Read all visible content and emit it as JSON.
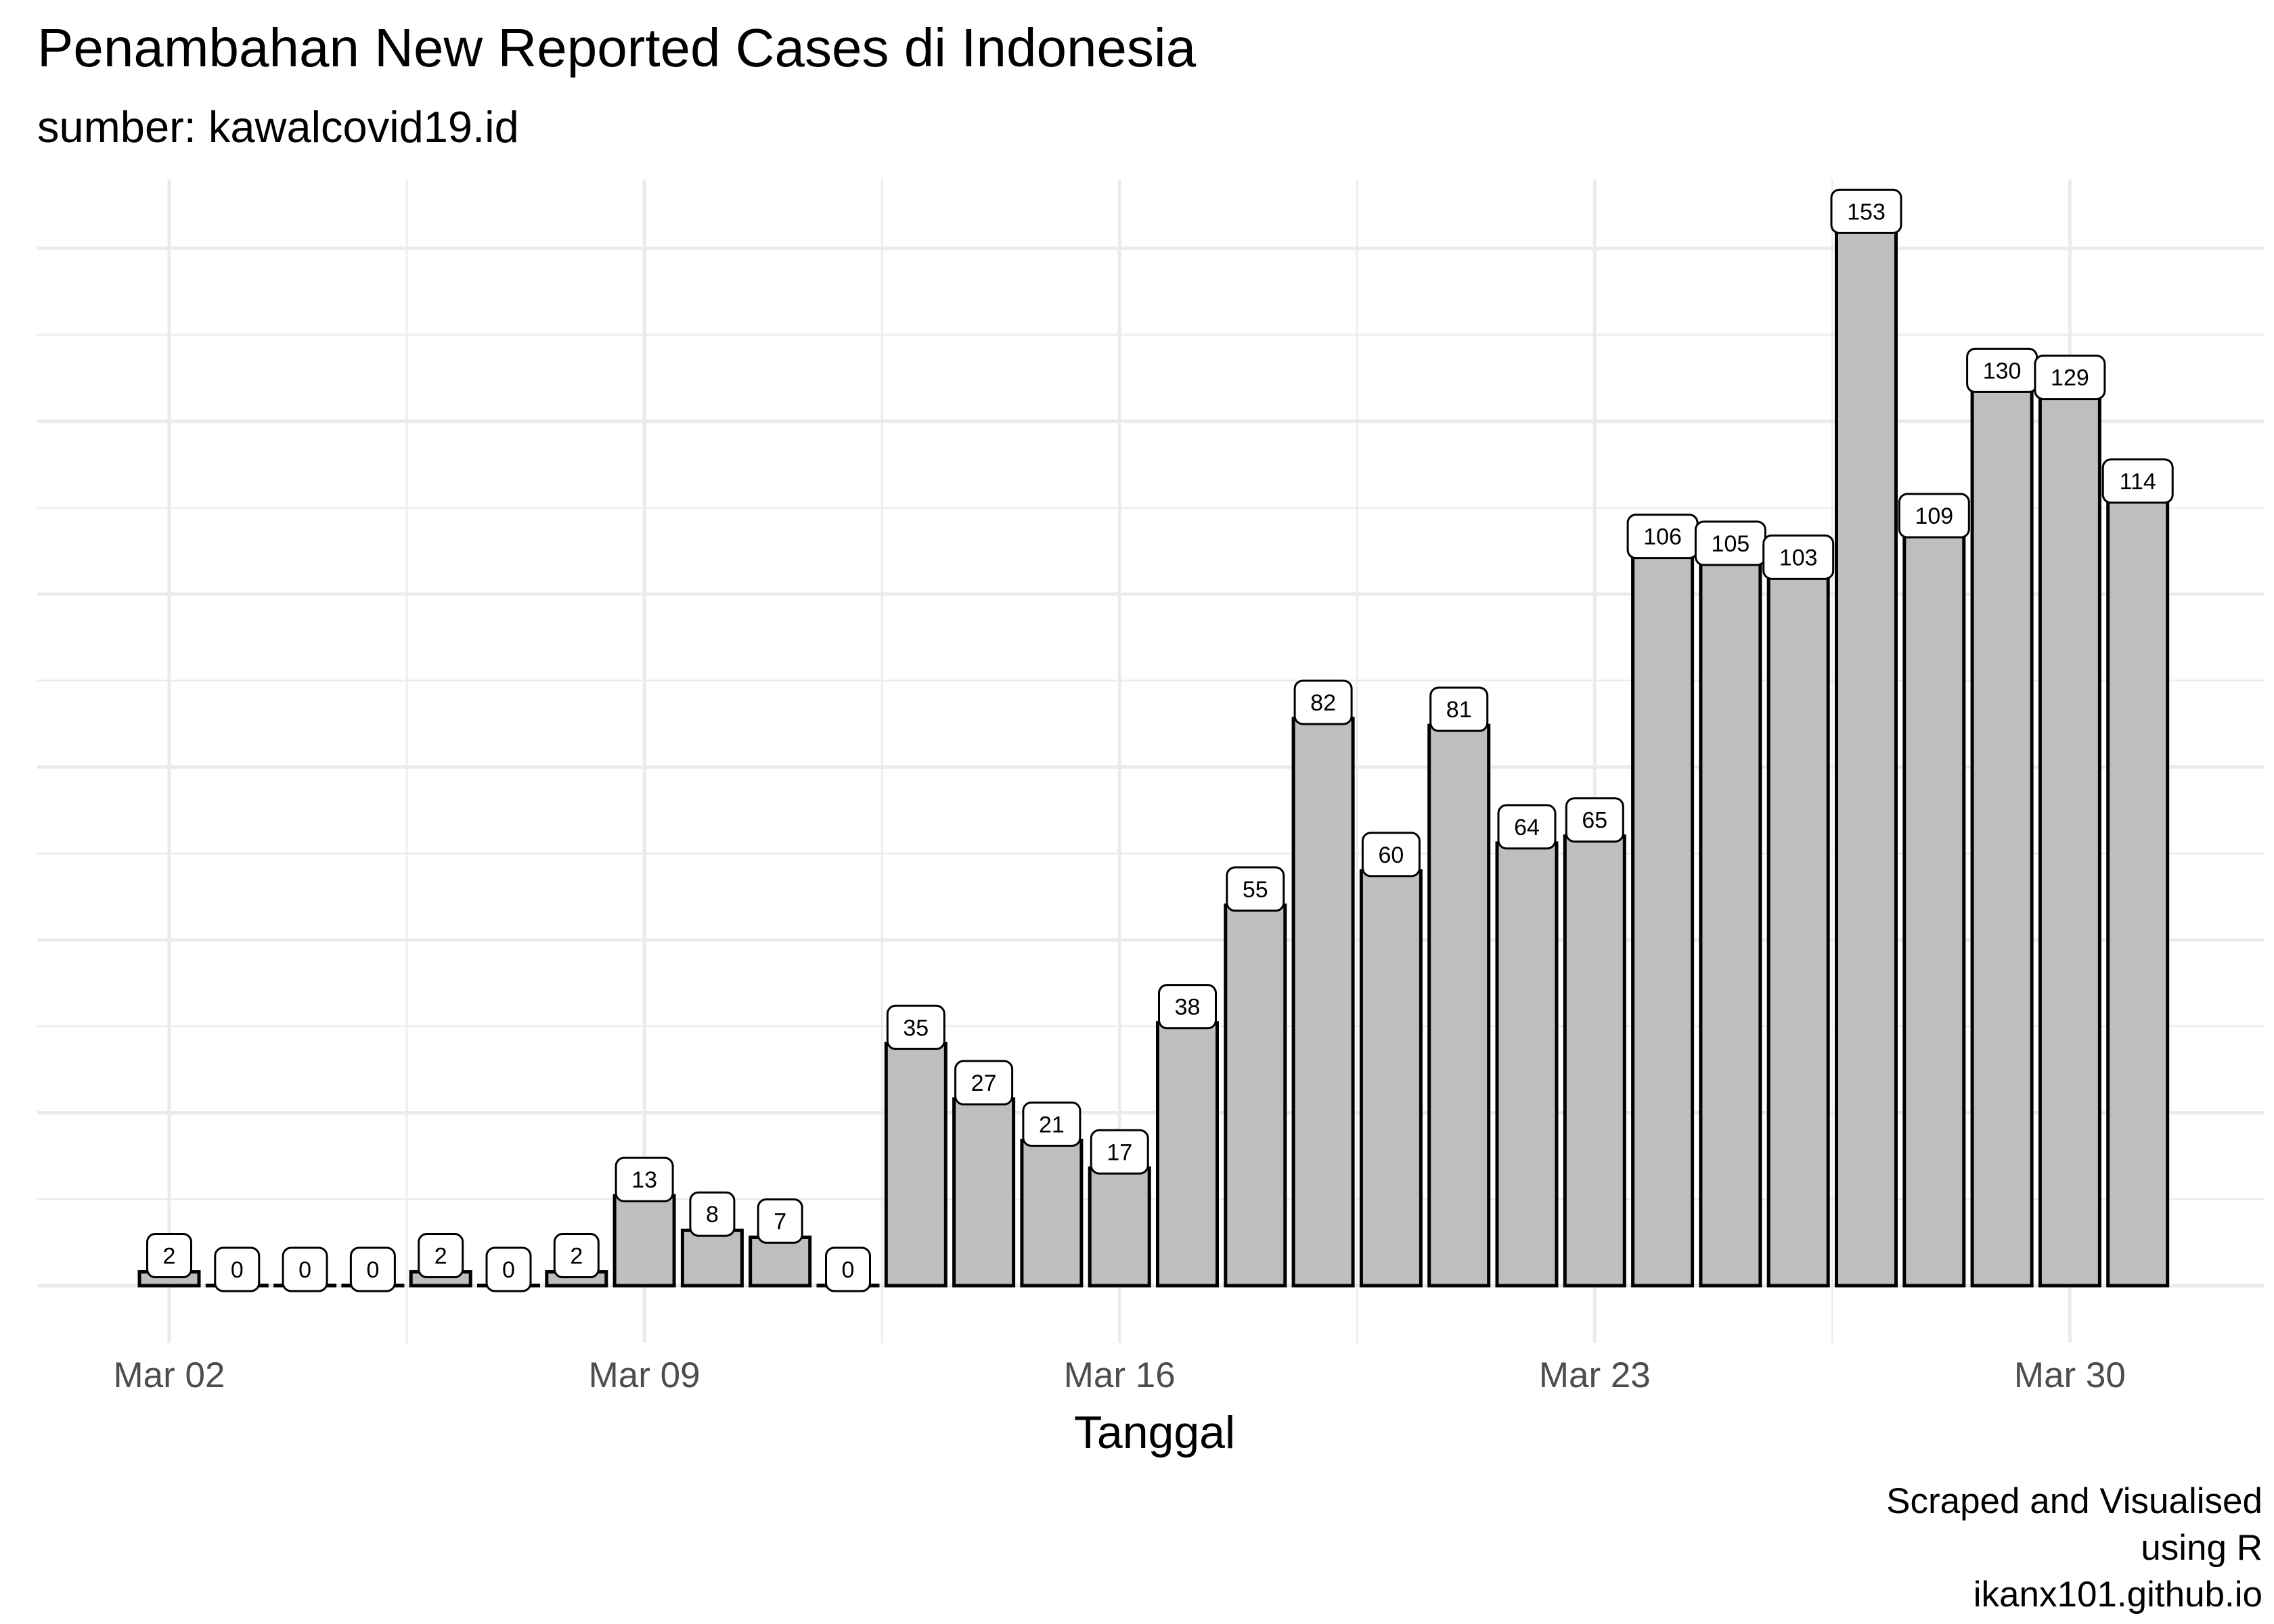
{
  "title": "Penambahan New Reported Cases di Indonesia",
  "subtitle": "sumber: kawalcovid19.id",
  "caption": [
    "Scraped and Visualised",
    "using R",
    "ikanx101.github.io"
  ],
  "chart_data": {
    "type": "bar",
    "x": [
      "2020-03-02",
      "2020-03-03",
      "2020-03-04",
      "2020-03-05",
      "2020-03-06",
      "2020-03-07",
      "2020-03-08",
      "2020-03-09",
      "2020-03-10",
      "2020-03-11",
      "2020-03-12",
      "2020-03-13",
      "2020-03-14",
      "2020-03-15",
      "2020-03-16",
      "2020-03-17",
      "2020-03-18",
      "2020-03-19",
      "2020-03-20",
      "2020-03-21",
      "2020-03-22",
      "2020-03-23",
      "2020-03-24",
      "2020-03-25",
      "2020-03-26",
      "2020-03-27",
      "2020-03-28",
      "2020-03-29",
      "2020-03-30",
      "2020-03-31"
    ],
    "values": [
      2,
      0,
      0,
      0,
      2,
      0,
      2,
      13,
      8,
      7,
      0,
      35,
      27,
      21,
      17,
      38,
      55,
      82,
      60,
      81,
      64,
      65,
      106,
      105,
      103,
      153,
      109,
      130,
      129,
      114
    ],
    "xlabel": "Tanggal",
    "ylabel": "",
    "x_ticks": [
      {
        "date": "2020-03-02",
        "label": "Mar 02"
      },
      {
        "date": "2020-03-09",
        "label": "Mar 09"
      },
      {
        "date": "2020-03-16",
        "label": "Mar 16"
      },
      {
        "date": "2020-03-23",
        "label": "Mar 23"
      },
      {
        "date": "2020-03-30",
        "label": "Mar 30"
      }
    ],
    "x_minor_ticks": [
      "2020-03-05T12:00",
      "2020-03-12T12:00",
      "2020-03-19T12:00",
      "2020-03-26T12:00",
      "2020-04-02T12:00"
    ],
    "ylim": [
      -12,
      165
    ],
    "y_gridlines": [
      0,
      25,
      50,
      75,
      100,
      125,
      150
    ],
    "y_tick_labels_shown": false,
    "grid": true,
    "legend": "none",
    "bar_color": "#bebebe",
    "bar_outline": "#000000"
  }
}
